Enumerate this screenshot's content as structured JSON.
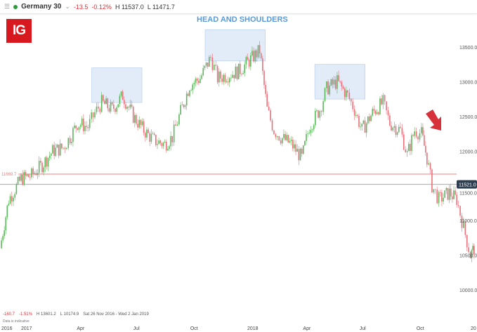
{
  "header": {
    "menu_icon": "hamburger-icon",
    "instrument": "Germany 30",
    "change": "-13.5",
    "change_pct": "-0.12%",
    "high": "H 11537.0",
    "low": "L 11471.7"
  },
  "logo": "IG",
  "annotation": "HEAD AND SHOULDERS",
  "footer": {
    "change": "-160.7",
    "change_pct": "-1.51%",
    "high": "H 13601.2",
    "low": "L 10174.9",
    "range": "Sat 26 Nov 2016 - Wed 2 Jan 2019",
    "note": "Data is indicative"
  },
  "chart_data": {
    "type": "candlestick",
    "title": "HEAD AND SHOULDERS",
    "y_ticks": [
      10000,
      10500,
      11000,
      11500,
      12000,
      12500,
      13000,
      13500
    ],
    "y_tick_labels": [
      "10000.0",
      "10500.0",
      "11000.0",
      "11500.0",
      "12000.0",
      "12500.0",
      "13000.0",
      "13500.0"
    ],
    "ylim": [
      9900,
      13850
    ],
    "x_ticks": [
      {
        "date": "2016-12-01",
        "label": "2016"
      },
      {
        "date": "2017-01-01",
        "label": "2017"
      },
      {
        "date": "2017-04-01",
        "label": "Apr"
      },
      {
        "date": "2017-07-01",
        "label": "Jul"
      },
      {
        "date": "2017-10-01",
        "label": "Oct"
      },
      {
        "date": "2018-01-01",
        "label": "2018"
      },
      {
        "date": "2018-04-01",
        "label": "Apr"
      },
      {
        "date": "2018-07-01",
        "label": "Jul"
      },
      {
        "date": "2018-10-01",
        "label": "Oct"
      },
      {
        "date": "2019-01-01",
        "label": "20"
      }
    ],
    "xlim": [
      "2016-11-26",
      "2019-01-04"
    ],
    "neckline": {
      "value": 11669.7,
      "label": "11669.7",
      "color": "#f08080"
    },
    "current": {
      "value": 11521.0,
      "label": "11521.0",
      "color": "#aaaaaa"
    },
    "colors": {
      "up": "#5cb85c",
      "down": "#e8707a",
      "box": "#dbe7f7"
    },
    "series": [
      [
        "2016-11-28",
        10600
      ],
      [
        "2016-12-12",
        11300
      ],
      [
        "2017-01-01",
        11600
      ],
      [
        "2017-01-18",
        11650
      ],
      [
        "2017-02-04",
        11800
      ],
      [
        "2017-02-21",
        12000
      ],
      [
        "2017-03-10",
        12050
      ],
      [
        "2017-03-21",
        12200
      ],
      [
        "2017-04-02",
        12400
      ],
      [
        "2017-04-19",
        12350
      ],
      [
        "2017-04-30",
        12550
      ],
      [
        "2017-05-11",
        12700
      ],
      [
        "2017-05-28",
        12600
      ],
      [
        "2017-06-14",
        12800
      ],
      [
        "2017-07-01",
        12500
      ],
      [
        "2017-07-18",
        12300
      ],
      [
        "2017-08-04",
        12150
      ],
      [
        "2017-08-21",
        12100
      ],
      [
        "2017-09-02",
        12200
      ],
      [
        "2017-09-13",
        12500
      ],
      [
        "2017-09-30",
        12950
      ],
      [
        "2017-10-17",
        13050
      ],
      [
        "2017-11-03",
        13350
      ],
      [
        "2017-11-14",
        13050
      ],
      [
        "2017-12-01",
        13100
      ],
      [
        "2017-12-18",
        13150
      ],
      [
        "2018-01-04",
        13300
      ],
      [
        "2018-01-21",
        13450
      ],
      [
        "2018-02-02",
        12600
      ],
      [
        "2018-02-13",
        12300
      ],
      [
        "2018-02-24",
        12200
      ],
      [
        "2018-03-13",
        12100
      ],
      [
        "2018-03-30",
        11900
      ],
      [
        "2018-04-11",
        12350
      ],
      [
        "2018-04-28",
        12600
      ],
      [
        "2018-05-09",
        12900
      ],
      [
        "2018-05-26",
        13000
      ],
      [
        "2018-06-12",
        12800
      ],
      [
        "2018-06-23",
        12600
      ],
      [
        "2018-07-05",
        12300
      ],
      [
        "2018-07-22",
        12550
      ],
      [
        "2018-08-08",
        12700
      ],
      [
        "2018-08-19",
        12400
      ],
      [
        "2018-09-05",
        12300
      ],
      [
        "2018-09-16",
        11950
      ],
      [
        "2018-09-28",
        12300
      ],
      [
        "2018-10-09",
        12250
      ],
      [
        "2018-10-18",
        11900
      ],
      [
        "2018-10-26",
        11500
      ],
      [
        "2018-11-06",
        11300
      ],
      [
        "2018-11-23",
        11400
      ],
      [
        "2018-12-05",
        11300
      ],
      [
        "2018-12-16",
        10900
      ],
      [
        "2018-12-27",
        10500
      ],
      [
        "2019-01-02",
        10600
      ]
    ],
    "pattern_boxes": [
      {
        "label": "left shoulder",
        "from": "2017-04-25",
        "to": "2017-07-15",
        "low": 12700,
        "high": 13200
      },
      {
        "label": "head",
        "from": "2017-10-25",
        "to": "2018-01-30",
        "low": 13300,
        "high": 13750
      },
      {
        "label": "right shoulder",
        "from": "2018-04-20",
        "to": "2018-07-10",
        "low": 12750,
        "high": 13250
      }
    ]
  }
}
